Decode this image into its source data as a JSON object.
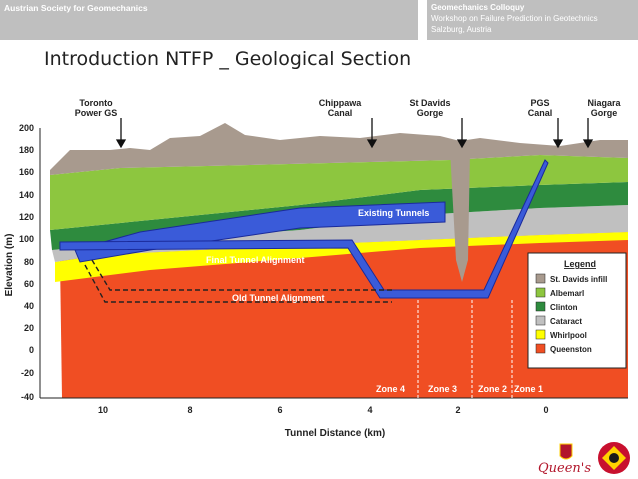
{
  "header": {
    "organization": "Austrian Society for Geomechanics",
    "conference_title": "Geomechanics Colloquy",
    "conference_subtitle": "Workshop on Failure Prediction in Geotechnics",
    "conference_location": "Salzburg, Austria"
  },
  "slide_title": "Introduction NTFP _ Geological Section",
  "section": {
    "y_axis_label": "Elevation (m)",
    "x_axis_label": "Tunnel Distance (km)",
    "y_ticks": [
      "200",
      "180",
      "160",
      "140",
      "120",
      "100",
      "80",
      "60",
      "40",
      "20",
      "0",
      "-20",
      "-40"
    ],
    "x_ticks": [
      "10",
      "8",
      "6",
      "4",
      "2",
      "0"
    ],
    "landmarks": [
      {
        "line1": "Toronto",
        "line2": "Power GS"
      },
      {
        "line1": "Chippawa",
        "line2": "Canal"
      },
      {
        "line1": "St Davids",
        "line2": "Gorge"
      },
      {
        "line1": "PGS",
        "line2": "Canal"
      },
      {
        "line1": "Niagara",
        "line2": "Gorge"
      }
    ],
    "tunnel_labels": {
      "existing": "Existing Tunnels",
      "final": "Final Tunnel Alignment",
      "old": "Old Tunnel Alignment"
    },
    "zones": [
      "Zone 4",
      "Zone 3",
      "Zone 2",
      "Zone 1"
    ],
    "legend": {
      "title": "Legend",
      "items": [
        {
          "label": "St. Davids infill",
          "color": "#a89a8e"
        },
        {
          "label": "Albemarl",
          "color": "#8dc63f"
        },
        {
          "label": "Clinton",
          "color": "#2e8b3e"
        },
        {
          "label": "Cataract",
          "color": "#c0c0c0"
        },
        {
          "label": "Whirlpool",
          "color": "#ffff00"
        },
        {
          "label": "Queenston",
          "color": "#f04e23"
        }
      ]
    },
    "colors": {
      "tunnel": "#3a5bd9",
      "tunnel_dark": "#1a2a9a",
      "infill": "#a89a8e",
      "albemarl": "#8dc63f",
      "clinton": "#2e8b3e",
      "cataract": "#c0c0c0",
      "whirlpool": "#ffff00",
      "queenston": "#f04e23"
    }
  },
  "footer": {
    "logo_text": "Queen's"
  }
}
